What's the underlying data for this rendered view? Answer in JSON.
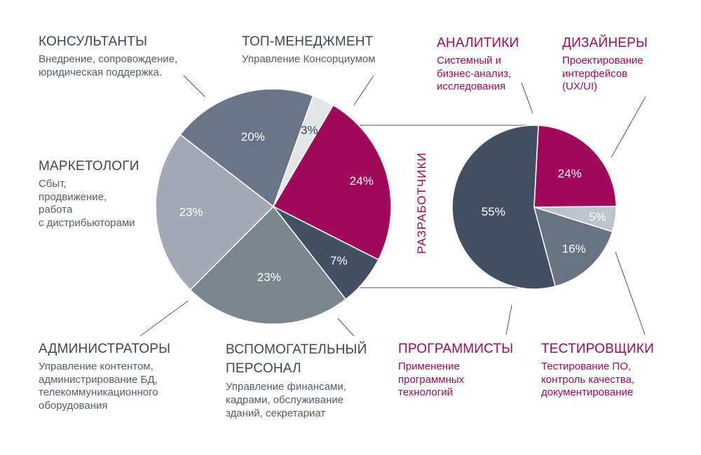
{
  "colors": {
    "accent": "#a10a5a",
    "dark_slate": "#435064",
    "slate": "#6a7589",
    "blue_gray": "#a3a9b5",
    "gray": "#7b868e",
    "light": "#e3e6e9",
    "light2": "#bdc3ca",
    "mid": "#687384",
    "text_dark": "#3c4656",
    "text_mid": "#555d69"
  },
  "labels": {
    "consultants": {
      "title": "КОНСУЛЬТАНТЫ",
      "desc": "Внедрение, сопровождение,\nюридическая поддержка."
    },
    "top_management": {
      "title": "ТОП-МЕНЕДЖМЕНТ",
      "desc": "Управление Консорциумом"
    },
    "marketers": {
      "title": "МАРКЕТОЛОГИ",
      "desc": "Сбыт,\nпродвижение,\nработа\nс дистрибьюторами"
    },
    "administrators": {
      "title": "АДМИНИСТРАТОРЫ",
      "desc": "Управление контентом,\nадминистрирование БД,\nтелекоммуникационного\nоборудования"
    },
    "support_staff": {
      "title": "ВСПОМОГАТЕЛЬНЫЙ\nПЕРСОНАЛ",
      "desc": "Управление финансами,\nкадрами, обслуживание\nзданий, секретариат"
    },
    "analysts": {
      "title": "АНАЛИТИКИ",
      "desc": "Системный и\nбизнес-анализ,\nисследования"
    },
    "designers": {
      "title": "ДИЗАЙНЕРЫ",
      "desc": "Проектирование\nинтерфейсов\n(UX/UI)"
    },
    "programmers": {
      "title": "ПРОГРАММИСТЫ",
      "desc": "Применение\nпрограммных\nтехнологий"
    },
    "testers": {
      "title": "ТЕСТИРОВЩИКИ",
      "desc": "Тестирование ПО,\nконтроль качества,\nдокументирование"
    },
    "developers_vertical": "РАЗРАБОТЧИКИ"
  },
  "chart_data": [
    {
      "type": "pie",
      "slices": [
        {
          "key": "developers",
          "value": 24,
          "label": "24%",
          "color": "#a10a5a"
        },
        {
          "key": "support_staff",
          "value": 7,
          "label": "7%",
          "color": "#435064"
        },
        {
          "key": "administrators",
          "value": 23,
          "label": "23%",
          "color": "#7b868e"
        },
        {
          "key": "marketers",
          "value": 23,
          "label": "23%",
          "color": "#a3a9b5"
        },
        {
          "key": "consultants",
          "value": 20,
          "label": "20%",
          "color": "#6a7589"
        },
        {
          "key": "top_management",
          "value": 3,
          "label": "3%",
          "color": "#e3e6e9"
        }
      ]
    },
    {
      "type": "pie",
      "slices": [
        {
          "key": "programmers",
          "value": 55,
          "label": "55%",
          "color": "#435064"
        },
        {
          "key": "analysts",
          "value": 24,
          "label": "24%",
          "color": "#a10a5a"
        },
        {
          "key": "designers",
          "value": 5,
          "label": "5%",
          "color": "#bdc3ca"
        },
        {
          "key": "testers",
          "value": 16,
          "label": "16%",
          "color": "#687384"
        }
      ]
    }
  ]
}
